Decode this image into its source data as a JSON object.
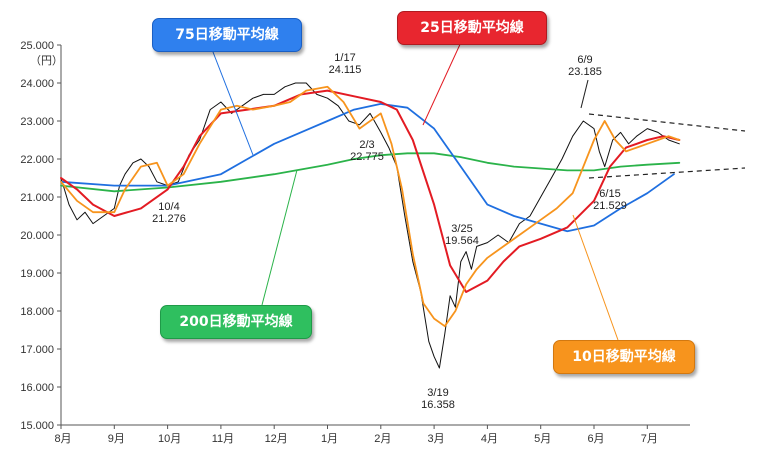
{
  "unit_label": "（円）",
  "legend": {
    "ma75": {
      "label": "75日移動平均線",
      "color": "#1f6fe0"
    },
    "ma25": {
      "label": "25日移動平均線",
      "color": "#e31b23"
    },
    "ma200": {
      "label": "200日移動平均線",
      "color": "#2bb34a"
    },
    "ma10": {
      "label": "10日移動平均線",
      "color": "#f7941d"
    }
  },
  "annotations": [
    {
      "date": "1/17",
      "value": "24.115"
    },
    {
      "date": "2/3",
      "value": "22.775"
    },
    {
      "date": "10/4",
      "value": "21.276"
    },
    {
      "date": "3/25",
      "value": "19.564"
    },
    {
      "date": "3/19",
      "value": "16.358"
    },
    {
      "date": "6/9",
      "value": "23.185"
    },
    {
      "date": "6/15",
      "value": "21.529"
    }
  ],
  "chart_data": {
    "type": "line",
    "xlabel": "",
    "ylabel": "",
    "x_tick_labels": [
      "8月",
      "9月",
      "10月",
      "11月",
      "12月",
      "1月",
      "2月",
      "3月",
      "4月",
      "5月",
      "6月",
      "7月"
    ],
    "y_tick_labels": [
      "15.000",
      "16.000",
      "17.000",
      "18.000",
      "19.000",
      "20.000",
      "21.000",
      "22.000",
      "23.000",
      "24.000",
      "25.000"
    ],
    "ylim": [
      15000,
      25000
    ],
    "grid": false,
    "x_domain_months": [
      0,
      11.8
    ],
    "series": [
      {
        "name": "75日移動平均線",
        "color": "#1f6fe0",
        "x_months": [
          0,
          1,
          2,
          3,
          3.5,
          4,
          5,
          5.5,
          6,
          6.5,
          7,
          7.5,
          8,
          8.5,
          9,
          9.5,
          10,
          10.5,
          11,
          11.5
        ],
        "values": [
          21400,
          21300,
          21300,
          21600,
          22000,
          22400,
          23000,
          23300,
          23450,
          23350,
          22800,
          21800,
          20800,
          20500,
          20300,
          20100,
          20250,
          20700,
          21100,
          21600
        ]
      },
      {
        "name": "25日移動平均線",
        "color": "#e31b23",
        "x_months": [
          0,
          0.3,
          0.6,
          1,
          1.5,
          2,
          2.3,
          2.6,
          3,
          3.5,
          4,
          4.5,
          5,
          5.5,
          6,
          6.3,
          6.6,
          7,
          7.3,
          7.6,
          8,
          8.3,
          8.6,
          9,
          9.5,
          10,
          10.3,
          10.6,
          11,
          11.3,
          11.6
        ],
        "values": [
          21500,
          21200,
          20800,
          20500,
          20700,
          21200,
          21800,
          22600,
          23200,
          23300,
          23400,
          23700,
          23800,
          23650,
          23500,
          23300,
          22500,
          20800,
          19200,
          18500,
          18800,
          19300,
          19700,
          19900,
          20200,
          20900,
          21800,
          22300,
          22500,
          22600,
          22500
        ]
      },
      {
        "name": "200日移動平均線",
        "color": "#2bb34a",
        "x_months": [
          0,
          1,
          2,
          3,
          4,
          5,
          5.5,
          6,
          6.5,
          7,
          7.5,
          8,
          8.5,
          9,
          9.5,
          10,
          10.5,
          11,
          11.6
        ],
        "values": [
          21300,
          21150,
          21250,
          21400,
          21600,
          21850,
          22000,
          22100,
          22150,
          22150,
          22050,
          21900,
          21800,
          21750,
          21700,
          21700,
          21800,
          21850,
          21900
        ]
      },
      {
        "name": "10日移動平均線",
        "color": "#f7941d",
        "x_months": [
          0,
          0.3,
          0.6,
          1,
          1.2,
          1.5,
          1.8,
          2,
          2.3,
          2.6,
          3,
          3.3,
          3.6,
          4,
          4.3,
          4.6,
          5,
          5.3,
          5.6,
          6,
          6.2,
          6.4,
          6.6,
          6.8,
          7,
          7.2,
          7.4,
          7.6,
          7.8,
          8,
          8.3,
          8.6,
          9,
          9.3,
          9.6,
          10,
          10.2,
          10.4,
          10.6,
          10.8,
          11,
          11.2,
          11.4,
          11.6
        ],
        "values": [
          21400,
          20900,
          20600,
          20600,
          21200,
          21800,
          21900,
          21300,
          21600,
          22400,
          23300,
          23400,
          23300,
          23400,
          23500,
          23800,
          23900,
          23500,
          22800,
          23200,
          22400,
          21200,
          19500,
          18200,
          17800,
          17600,
          18000,
          18700,
          19100,
          19400,
          19700,
          20000,
          20400,
          20700,
          21100,
          22500,
          23000,
          22500,
          22200,
          22300,
          22400,
          22500,
          22600,
          22500
        ]
      },
      {
        "name": "",
        "color": "#111111",
        "x_months": [
          0,
          0.15,
          0.3,
          0.45,
          0.6,
          0.8,
          1,
          1.1,
          1.2,
          1.35,
          1.5,
          1.65,
          1.8,
          2,
          2.2,
          2.4,
          2.6,
          2.8,
          3,
          3.2,
          3.4,
          3.6,
          3.8,
          4,
          4.2,
          4.4,
          4.6,
          4.8,
          5,
          5.2,
          5.4,
          5.6,
          5.8,
          6,
          6.15,
          6.3,
          6.45,
          6.6,
          6.75,
          6.9,
          7,
          7.1,
          7.2,
          7.3,
          7.4,
          7.5,
          7.6,
          7.7,
          7.8,
          8,
          8.2,
          8.4,
          8.6,
          8.8,
          9,
          9.2,
          9.4,
          9.6,
          9.8,
          10,
          10.1,
          10.2,
          10.35,
          10.5,
          10.65,
          10.8,
          11,
          11.2,
          11.4,
          11.6
        ],
        "values": [
          21500,
          20800,
          20400,
          20600,
          20300,
          20500,
          20700,
          21300,
          21600,
          21900,
          22000,
          21800,
          21400,
          21300,
          21400,
          22100,
          22500,
          23300,
          23500,
          23200,
          23400,
          23600,
          23700,
          23700,
          23900,
          24000,
          24000,
          23700,
          23600,
          23400,
          23000,
          22900,
          23200,
          22700,
          22300,
          21800,
          20500,
          19300,
          18500,
          17200,
          16800,
          16500,
          17400,
          18400,
          18100,
          19300,
          19564,
          19100,
          19700,
          19800,
          20000,
          19800,
          20300,
          20500,
          21000,
          21500,
          22000,
          22600,
          23000,
          22800,
          22200,
          21800,
          22500,
          22700,
          22400,
          22600,
          22800,
          22700,
          22500,
          22400
        ]
      }
    ]
  }
}
